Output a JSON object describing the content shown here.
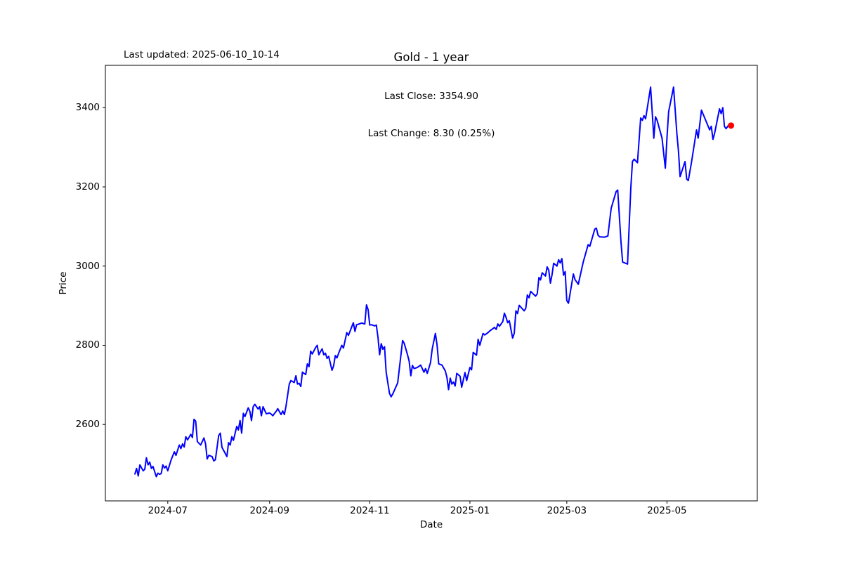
{
  "header": {
    "last_updated": "Last updated: 2025-06-10_10-14",
    "title": "Gold - 1 year",
    "annotation_line1": "Last Close: 3354.90",
    "annotation_line2": "Last Change: 8.30 (0.25%)"
  },
  "chart_data": {
    "type": "line",
    "title": "Gold - 1 year",
    "xlabel": "Date",
    "ylabel": "Price",
    "legend": "none",
    "grid": false,
    "line_color": "#0000ff",
    "marker_color": "#ff0000",
    "xlim": [
      "2024-05-24",
      "2025-06-25"
    ],
    "ylim": [
      2407,
      3507
    ],
    "x_tick_dates": [
      "2024-07-01",
      "2024-09-01",
      "2024-11-01",
      "2025-01-01",
      "2025-03-01",
      "2025-05-01"
    ],
    "x_tick_labels": [
      "2024-07",
      "2024-09",
      "2024-11",
      "2025-01",
      "2025-03",
      "2025-05"
    ],
    "y_ticks": [
      2600,
      2800,
      3000,
      3200,
      3400
    ],
    "y_tick_labels": [
      "2600",
      "2800",
      "3000",
      "3200",
      "3400"
    ],
    "last_point": {
      "date": "2025-06-09",
      "price": 3354.9
    },
    "series": [
      {
        "name": "Gold",
        "dates": [
          "2024-06-11",
          "2024-06-12",
          "2024-06-13",
          "2024-06-14",
          "2024-06-16",
          "2024-06-17",
          "2024-06-18",
          "2024-06-19",
          "2024-06-20",
          "2024-06-21",
          "2024-06-22",
          "2024-06-24",
          "2024-06-25",
          "2024-06-26",
          "2024-06-27",
          "2024-06-28",
          "2024-06-29",
          "2024-06-30",
          "2024-07-01",
          "2024-07-03",
          "2024-07-05",
          "2024-07-06",
          "2024-07-08",
          "2024-07-09",
          "2024-07-10",
          "2024-07-11",
          "2024-07-12",
          "2024-07-13",
          "2024-07-15",
          "2024-07-16",
          "2024-07-17",
          "2024-07-18",
          "2024-07-19",
          "2024-07-21",
          "2024-07-23",
          "2024-07-24",
          "2024-07-25",
          "2024-07-26",
          "2024-07-28",
          "2024-07-29",
          "2024-07-30",
          "2024-08-01",
          "2024-08-02",
          "2024-08-03",
          "2024-08-05",
          "2024-08-06",
          "2024-08-07",
          "2024-08-08",
          "2024-08-09",
          "2024-08-10",
          "2024-08-12",
          "2024-08-13",
          "2024-08-14",
          "2024-08-15",
          "2024-08-16",
          "2024-08-17",
          "2024-08-19",
          "2024-08-20",
          "2024-08-21",
          "2024-08-22",
          "2024-08-23",
          "2024-08-25",
          "2024-08-26",
          "2024-08-27",
          "2024-08-28",
          "2024-08-29",
          "2024-08-30",
          "2024-09-01",
          "2024-09-02",
          "2024-09-03",
          "2024-09-04",
          "2024-09-05",
          "2024-09-06",
          "2024-09-08",
          "2024-09-09",
          "2024-09-10",
          "2024-09-11",
          "2024-09-13",
          "2024-09-14",
          "2024-09-16",
          "2024-09-17",
          "2024-09-18",
          "2024-09-19",
          "2024-09-20",
          "2024-09-21",
          "2024-09-23",
          "2024-09-24",
          "2024-09-25",
          "2024-09-26",
          "2024-09-27",
          "2024-09-29",
          "2024-09-30",
          "2024-10-01",
          "2024-10-02",
          "2024-10-03",
          "2024-10-04",
          "2024-10-05",
          "2024-10-06",
          "2024-10-07",
          "2024-10-09",
          "2024-10-10",
          "2024-10-11",
          "2024-10-12",
          "2024-10-13",
          "2024-10-15",
          "2024-10-16",
          "2024-10-18",
          "2024-10-19",
          "2024-10-22",
          "2024-10-23",
          "2024-10-24",
          "2024-10-25",
          "2024-10-27",
          "2024-10-29",
          "2024-10-30",
          "2024-10-31",
          "2024-11-01",
          "2024-11-02",
          "2024-11-04",
          "2024-11-05",
          "2024-11-06",
          "2024-11-07",
          "2024-11-08",
          "2024-11-09",
          "2024-11-10",
          "2024-11-11",
          "2024-11-12",
          "2024-11-13",
          "2024-11-14",
          "2024-11-15",
          "2024-11-18",
          "2024-11-19",
          "2024-11-21",
          "2024-11-22",
          "2024-11-24",
          "2024-11-25",
          "2024-11-26",
          "2024-11-27",
          "2024-11-28",
          "2024-11-30",
          "2024-12-02",
          "2024-12-04",
          "2024-12-05",
          "2024-12-06",
          "2024-12-08",
          "2024-12-09",
          "2024-12-11",
          "2024-12-12",
          "2024-12-13",
          "2024-12-15",
          "2024-12-17",
          "2024-12-18",
          "2024-12-19",
          "2024-12-20",
          "2024-12-21",
          "2024-12-22",
          "2024-12-23",
          "2024-12-24",
          "2024-12-26",
          "2024-12-27",
          "2024-12-29",
          "2024-12-30",
          "2025-01-01",
          "2025-01-02",
          "2025-01-03",
          "2025-01-05",
          "2025-01-06",
          "2025-01-07",
          "2025-01-09",
          "2025-01-10",
          "2025-01-12",
          "2025-01-13",
          "2025-01-16",
          "2025-01-17",
          "2025-01-18",
          "2025-01-19",
          "2025-01-21",
          "2025-01-22",
          "2025-01-23",
          "2025-01-24",
          "2025-01-25",
          "2025-01-27",
          "2025-01-28",
          "2025-01-29",
          "2025-01-30",
          "2025-01-31",
          "2025-02-03",
          "2025-02-04",
          "2025-02-05",
          "2025-02-06",
          "2025-02-07",
          "2025-02-10",
          "2025-02-11",
          "2025-02-12",
          "2025-02-13",
          "2025-02-14",
          "2025-02-16",
          "2025-02-17",
          "2025-02-18",
          "2025-02-19",
          "2025-02-20",
          "2025-02-21",
          "2025-02-23",
          "2025-02-24",
          "2025-02-25",
          "2025-02-26",
          "2025-02-27",
          "2025-02-28",
          "2025-03-01",
          "2025-03-02",
          "2025-03-05",
          "2025-03-06",
          "2025-03-08",
          "2025-03-11",
          "2025-03-14",
          "2025-03-15",
          "2025-03-18",
          "2025-03-19",
          "2025-03-20",
          "2025-03-21",
          "2025-03-24",
          "2025-03-26",
          "2025-03-28",
          "2025-03-31",
          "2025-04-01",
          "2025-04-03",
          "2025-04-04",
          "2025-04-07",
          "2025-04-09",
          "2025-04-10",
          "2025-04-11",
          "2025-04-13",
          "2025-04-15",
          "2025-04-16",
          "2025-04-17",
          "2025-04-18",
          "2025-04-21",
          "2025-04-22",
          "2025-04-23",
          "2025-04-24",
          "2025-04-25",
          "2025-04-28",
          "2025-04-30",
          "2025-05-01",
          "2025-05-02",
          "2025-05-05",
          "2025-05-07",
          "2025-05-08",
          "2025-05-09",
          "2025-05-12",
          "2025-05-13",
          "2025-05-14",
          "2025-05-16",
          "2025-05-19",
          "2025-05-20",
          "2025-05-22",
          "2025-05-27",
          "2025-05-28",
          "2025-05-29",
          "2025-05-30",
          "2025-06-02",
          "2025-06-03",
          "2025-06-04",
          "2025-06-05",
          "2025-06-06",
          "2025-06-08",
          "2025-06-09"
        ],
        "prices": [
          2475,
          2489,
          2470,
          2498,
          2483,
          2487,
          2516,
          2498,
          2505,
          2489,
          2494,
          2468,
          2477,
          2474,
          2476,
          2498,
          2490,
          2495,
          2483,
          2510,
          2531,
          2522,
          2548,
          2539,
          2551,
          2543,
          2569,
          2561,
          2575,
          2567,
          2613,
          2608,
          2557,
          2548,
          2566,
          2551,
          2513,
          2522,
          2519,
          2508,
          2511,
          2572,
          2578,
          2542,
          2527,
          2519,
          2554,
          2548,
          2569,
          2560,
          2595,
          2586,
          2610,
          2578,
          2628,
          2620,
          2642,
          2633,
          2610,
          2645,
          2651,
          2639,
          2645,
          2622,
          2645,
          2636,
          2627,
          2629,
          2626,
          2622,
          2628,
          2633,
          2640,
          2625,
          2634,
          2625,
          2646,
          2702,
          2711,
          2706,
          2723,
          2702,
          2704,
          2696,
          2732,
          2726,
          2753,
          2746,
          2785,
          2778,
          2794,
          2800,
          2776,
          2784,
          2791,
          2776,
          2780,
          2767,
          2772,
          2737,
          2748,
          2774,
          2768,
          2779,
          2800,
          2793,
          2832,
          2825,
          2857,
          2835,
          2852,
          2853,
          2856,
          2854,
          2902,
          2890,
          2851,
          2852,
          2849,
          2851,
          2821,
          2776,
          2804,
          2790,
          2796,
          2732,
          2705,
          2679,
          2670,
          2677,
          2705,
          2740,
          2812,
          2805,
          2776,
          2760,
          2723,
          2749,
          2741,
          2744,
          2750,
          2732,
          2741,
          2729,
          2756,
          2790,
          2830,
          2800,
          2753,
          2750,
          2735,
          2719,
          2688,
          2717,
          2702,
          2707,
          2697,
          2729,
          2722,
          2694,
          2731,
          2711,
          2744,
          2738,
          2782,
          2775,
          2815,
          2800,
          2830,
          2826,
          2832,
          2836,
          2845,
          2840,
          2854,
          2848,
          2860,
          2881,
          2870,
          2857,
          2862,
          2818,
          2830,
          2887,
          2880,
          2901,
          2887,
          2893,
          2927,
          2920,
          2936,
          2924,
          2930,
          2971,
          2965,
          2983,
          2975,
          2998,
          2990,
          2957,
          2978,
          3007,
          3000,
          3016,
          3008,
          3019,
          2977,
          2986,
          2913,
          2906,
          2980,
          2966,
          2954,
          3010,
          3054,
          3050,
          3093,
          3096,
          3078,
          3074,
          3073,
          3076,
          3146,
          3188,
          3192,
          3060,
          3010,
          3005,
          3199,
          3264,
          3270,
          3261,
          3374,
          3368,
          3380,
          3372,
          3452,
          3389,
          3323,
          3377,
          3368,
          3323,
          3247,
          3323,
          3390,
          3452,
          3335,
          3290,
          3226,
          3264,
          3220,
          3216,
          3264,
          3344,
          3323,
          3394,
          3344,
          3353,
          3320,
          3335,
          3397,
          3385,
          3400,
          3353,
          3347,
          3359,
          3354.9
        ]
      }
    ]
  }
}
